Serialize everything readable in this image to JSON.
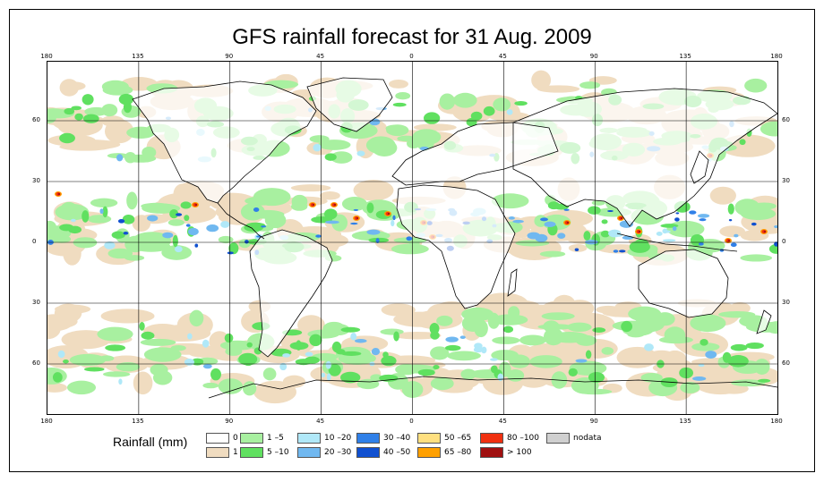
{
  "title": "GFS rainfall forecast for 31 Aug. 2009",
  "map": {
    "type": "rainfall-map",
    "longitude_ticks": [
      "180",
      "135",
      "90",
      "45",
      "0",
      "45",
      "90",
      "135",
      "180"
    ],
    "latitude_ticks": [
      "60",
      "30",
      "0",
      "30",
      "60"
    ],
    "lon_range": [
      -180,
      180
    ],
    "lat_range": [
      -85,
      90
    ],
    "colors": {
      "water": "#ffffff",
      "land_line": "#000000",
      "grid": "#000000"
    }
  },
  "legend": {
    "title": "Rainfall (mm)",
    "classes": [
      {
        "label": "0",
        "color": "#ffffff"
      },
      {
        "label": "1",
        "color": "#f0dcc0"
      },
      {
        "label": "1 –5",
        "color": "#a8f0a0"
      },
      {
        "label": "5 –10",
        "color": "#60e060"
      },
      {
        "label": "10 –20",
        "color": "#b0e8f8"
      },
      {
        "label": "20 –30",
        "color": "#70b8f0"
      },
      {
        "label": "30 –40",
        "color": "#3080e8"
      },
      {
        "label": "40 –50",
        "color": "#1050d0"
      },
      {
        "label": "50 –65",
        "color": "#ffe080"
      },
      {
        "label": "65 –80",
        "color": "#ffa000"
      },
      {
        "label": "80 –100",
        "color": "#f03010"
      },
      {
        "label": "> 100",
        "color": "#a01010"
      },
      {
        "label": "nodata",
        "color": "#d0d0d0"
      }
    ]
  }
}
